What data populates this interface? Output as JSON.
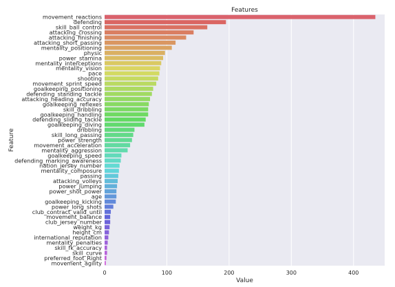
{
  "chart_data": {
    "type": "bar",
    "orientation": "horizontal",
    "title": "Features",
    "xlabel": "Value",
    "ylabel": "Feature",
    "xlim": [
      0,
      450
    ],
    "xticks": [
      0,
      100,
      200,
      300,
      400
    ],
    "grid": true,
    "categories": [
      "movement_reactions",
      "defending",
      "skill_ball_control",
      "attacking_crossing",
      "attacking_finishing",
      "attacking_short_passing",
      "mentality_positioning",
      "physic",
      "power_stamina",
      "mentality_interceptions",
      "mentality_vision",
      "pace",
      "shooting",
      "movement_sprint_speed",
      "goalkeeping_positioning",
      "defending_standing_tackle",
      "attacking_heading_accuracy",
      "goalkeeping_reflexes",
      "skill_dribbling",
      "goalkeeping_handling",
      "defending_sliding_tackle",
      "goalkeeping_diving",
      "dribbling",
      "skill_long_passing",
      "power_strength",
      "movement_acceleration",
      "mentality_aggression",
      "goalkeeping_speed",
      "defending_marking_awareness",
      "nation_jersey_number",
      "mentality_composure",
      "passing",
      "attacking_volleys",
      "power_jumping",
      "power_shot_power",
      "age",
      "goalkeeping_kicking",
      "power_long_shots",
      "club_contract_valid_until",
      "movement_balance",
      "club_jersey_number",
      "weight_kg",
      "height_cm",
      "international_reputation",
      "mentality_penalties",
      "skill_fk_accuracy",
      "skill_curve",
      "preferred_foot_Right",
      "movement_agility"
    ],
    "values": [
      435,
      195,
      165,
      143,
      131,
      114,
      108,
      97,
      94,
      91,
      89,
      88,
      86,
      83,
      78,
      76,
      73,
      71,
      70,
      70,
      66,
      64,
      48,
      46,
      44,
      41,
      37,
      27,
      26,
      24,
      23,
      22,
      21,
      20,
      19,
      19,
      18,
      14,
      10,
      9,
      9,
      8,
      7,
      6,
      5,
      4,
      4,
      3,
      2
    ]
  }
}
